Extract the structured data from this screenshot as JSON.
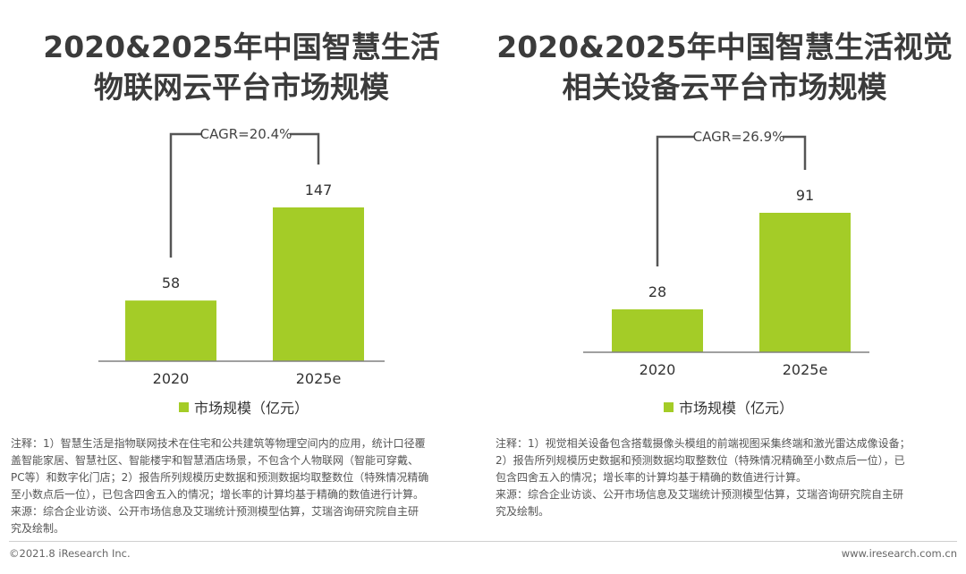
{
  "panels": {
    "left": {
      "title": [
        "2020&2025年中国智慧生活",
        "物联网云平台市场规模"
      ],
      "legend": "市场规模（亿元）",
      "notes": [
        "注释：1）智慧生活是指物联网技术在住宅和公共建筑等物理空间内的应用，统计口径覆",
        "盖智能家居、智慧社区、智能楼宇和智慧酒店场景，不包含个人物联网（智能可穿戴、",
        "PC等）和数字化门店；2）报告所列规模历史数据和预测数据均取整数位（特殊情况精确",
        "至小数点后一位），已包含四舍五入的情况；增长率的计算均基于精确的数值进行计算。",
        "来源：综合企业访谈、公开市场信息及艾瑞统计预测模型估算，艾瑞咨询研究院自主研",
        "究及绘制。"
      ]
    },
    "right": {
      "title": [
        "2020&2025年中国智慧生活视觉",
        "相关设备云平台市场规模"
      ],
      "legend": "市场规模（亿元）",
      "notes": [
        "注释：1）视觉相关设备包含搭载摄像头模组的前端视图采集终端和激光雷达成像设备；",
        "2）报告所列规模历史数据和预测数据均取整数位（特殊情况精确至小数点后一位），已",
        "包含四舍五入的情况；增长率的计算均基于精确的数值进行计算。",
        "来源：综合企业访谈、公开市场信息及艾瑞统计预测模型估算，艾瑞咨询研究院自主研",
        "究及绘制。"
      ]
    }
  },
  "footer": {
    "copyright": "©2021.8 iResearch Inc.",
    "website": "www.iresearch.com.cn"
  },
  "colors": {
    "bar": "#a4cc27",
    "axis": "#808080",
    "bracket": "#555555"
  },
  "chart_data": [
    {
      "type": "bar",
      "categories": [
        "2020",
        "2025e"
      ],
      "series": [
        {
          "name": "市场规模（亿元）",
          "values": [
            58,
            147
          ]
        }
      ],
      "data_labels": [
        "58",
        "147"
      ],
      "annotation": "CAGR=20.4%",
      "ylim": [
        0,
        147
      ]
    },
    {
      "type": "bar",
      "categories": [
        "2020",
        "2025e"
      ],
      "series": [
        {
          "name": "市场规模（亿元）",
          "values": [
            28,
            91
          ]
        }
      ],
      "data_labels": [
        "28",
        "91"
      ],
      "annotation": "CAGR=26.9%",
      "ylim": [
        0,
        91
      ]
    }
  ]
}
